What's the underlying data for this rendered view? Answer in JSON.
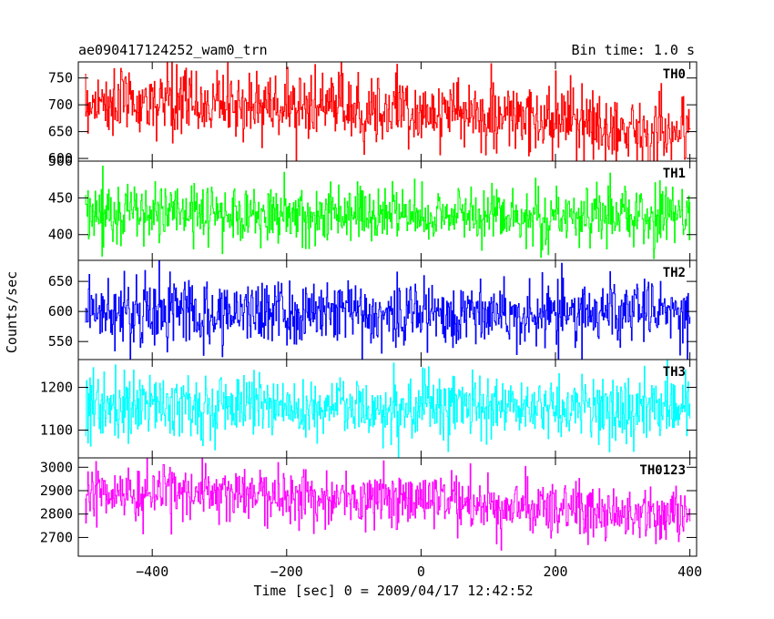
{
  "header": {
    "left": "ae090417124252_wam0_trn",
    "right": "Bin time: 1.0 s"
  },
  "chart_data": {
    "type": "line",
    "xlabel": "Time [sec] 0 = 2009/04/17 12:42:52",
    "ylabel": "Counts/sec",
    "xlim": [
      -510,
      410
    ],
    "xticks": [
      -400,
      -200,
      0,
      200,
      400
    ],
    "bin_time_s": 1.0,
    "x_start": -500,
    "x_end": 400,
    "panels": [
      {
        "name": "TH0",
        "color": "#ff0000",
        "ylim": [
          595,
          780
        ],
        "yticks": [
          600,
          650,
          700,
          750
        ],
        "ytick_labels": [
          "600",
          "650",
          "700",
          "750"
        ],
        "trend_x": [
          -500,
          -300,
          -100,
          100,
          300,
          400
        ],
        "trend_y": [
          705,
          703,
          695,
          680,
          655,
          650
        ],
        "noise_sd": 32
      },
      {
        "name": "TH1",
        "color": "#00ff00",
        "ylim": [
          365,
          500
        ],
        "yticks": [
          400,
          450,
          500
        ],
        "ytick_labels": [
          "400",
          "450",
          "500"
        ],
        "trend_x": [
          -500,
          -100,
          400
        ],
        "trend_y": [
          430,
          428,
          425
        ],
        "noise_sd": 20
      },
      {
        "name": "TH2",
        "color": "#0000ff",
        "ylim": [
          520,
          685
        ],
        "yticks": [
          550,
          600,
          650
        ],
        "ytick_labels": [
          "550",
          "600",
          "650"
        ],
        "trend_x": [
          -500,
          0,
          400
        ],
        "trend_y": [
          600,
          598,
          597
        ],
        "noise_sd": 28
      },
      {
        "name": "TH3",
        "color": "#00ffff",
        "ylim": [
          1035,
          1265
        ],
        "yticks": [
          1100,
          1200
        ],
        "ytick_labels": [
          "1100",
          "1200"
        ],
        "trend_x": [
          -500,
          -100,
          400
        ],
        "trend_y": [
          1162,
          1155,
          1148
        ],
        "noise_sd": 38
      },
      {
        "name": "TH0123",
        "color": "#ff00ff",
        "ylim": [
          2620,
          3040
        ],
        "yticks": [
          2700,
          2800,
          2900,
          3000
        ],
        "ytick_labels": [
          "2700",
          "2800",
          "2900",
          "3000"
        ],
        "trend_x": [
          -500,
          -300,
          -100,
          100,
          300,
          400
        ],
        "trend_y": [
          2895,
          2890,
          2865,
          2835,
          2805,
          2800
        ],
        "noise_sd": 60
      }
    ]
  }
}
